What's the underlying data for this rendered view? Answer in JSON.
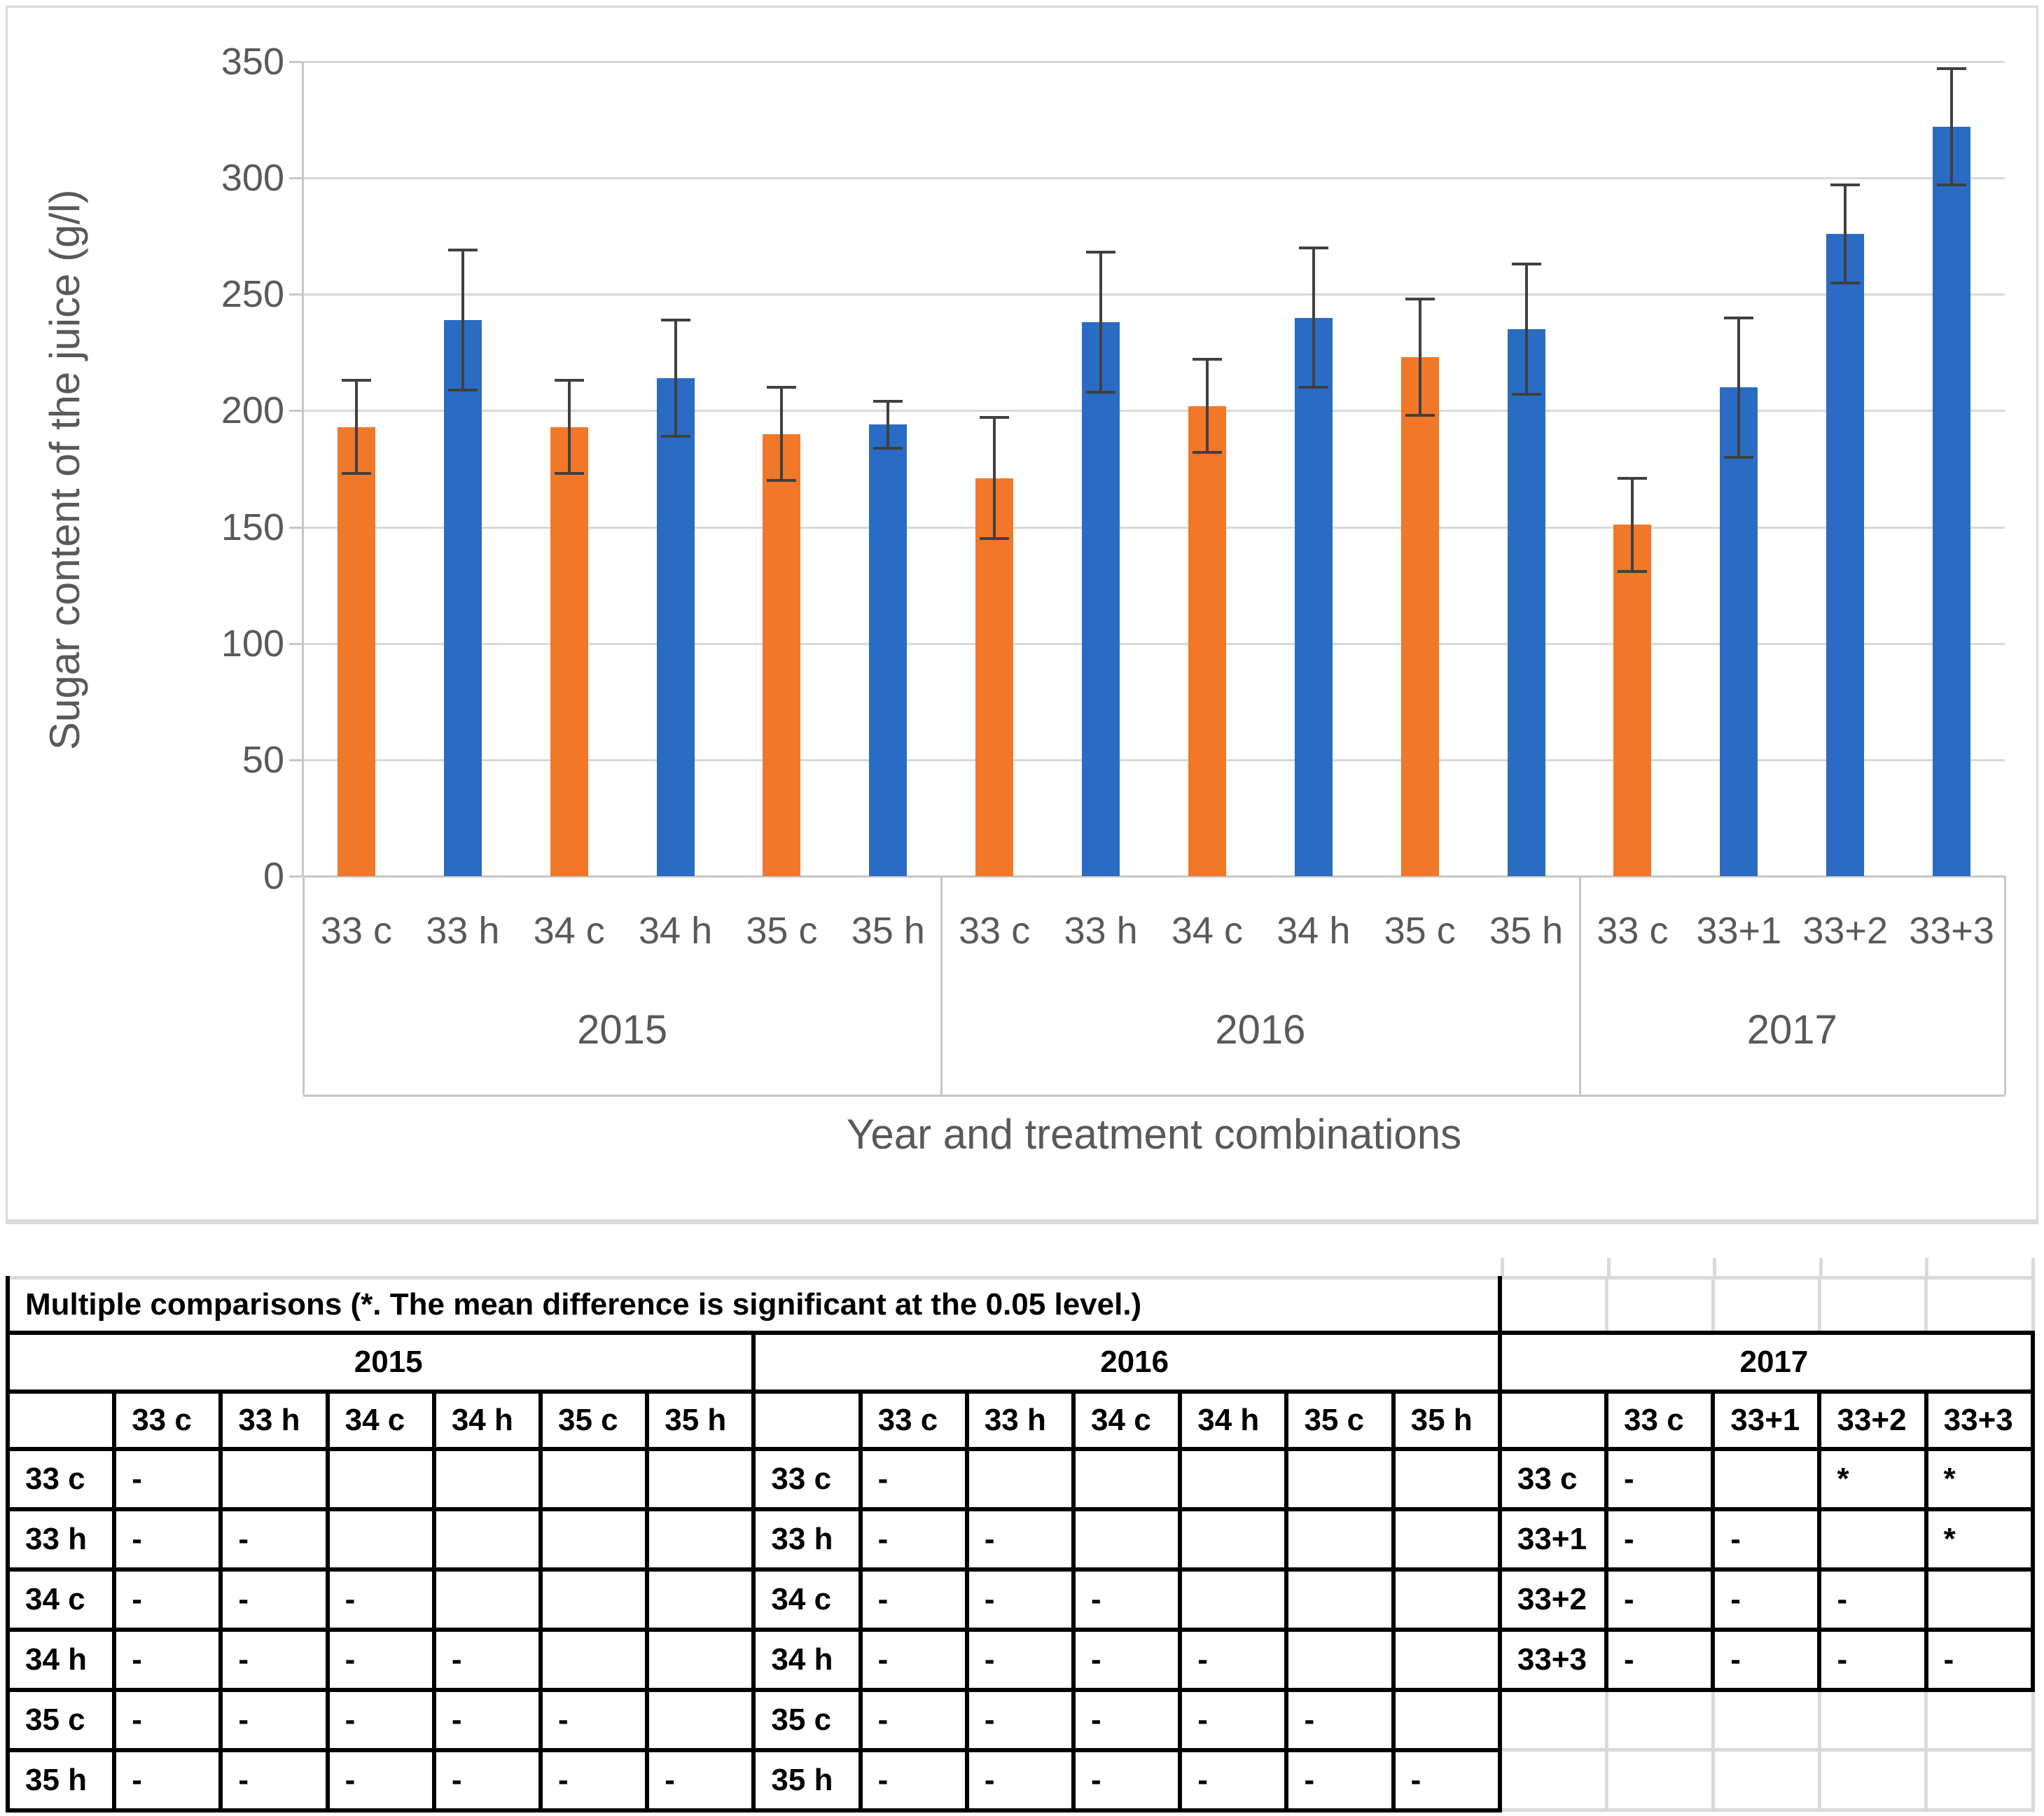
{
  "chart_data": {
    "type": "bar",
    "title": "",
    "xlabel": "Year and treatment combinations",
    "ylabel": "Sugar content of the juice (g/l)",
    "ylim": [
      0,
      350
    ],
    "ytick_step": 50,
    "grid": true,
    "legend": false,
    "groups": [
      {
        "year": "2015",
        "bars": [
          {
            "label": "33 c",
            "value": 193,
            "error": 20,
            "color": "orange"
          },
          {
            "label": "33 h",
            "value": 239,
            "error": 30,
            "color": "blue"
          },
          {
            "label": "34 c",
            "value": 193,
            "error": 20,
            "color": "orange"
          },
          {
            "label": "34 h",
            "value": 214,
            "error": 25,
            "color": "blue"
          },
          {
            "label": "35 c",
            "value": 190,
            "error": 20,
            "color": "orange"
          },
          {
            "label": "35 h",
            "value": 194,
            "error": 10,
            "color": "blue"
          }
        ]
      },
      {
        "year": "2016",
        "bars": [
          {
            "label": "33 c",
            "value": 171,
            "error": 26,
            "color": "orange"
          },
          {
            "label": "33 h",
            "value": 238,
            "error": 30,
            "color": "blue"
          },
          {
            "label": "34 c",
            "value": 202,
            "error": 20,
            "color": "orange"
          },
          {
            "label": "34 h",
            "value": 240,
            "error": 30,
            "color": "blue"
          },
          {
            "label": "35 c",
            "value": 223,
            "error": 25,
            "color": "orange"
          },
          {
            "label": "35 h",
            "value": 235,
            "error": 28,
            "color": "blue"
          }
        ]
      },
      {
        "year": "2017",
        "bars": [
          {
            "label": "33 c",
            "value": 151,
            "error": 20,
            "color": "orange"
          },
          {
            "label": "33+1",
            "value": 210,
            "error": 30,
            "color": "blue"
          },
          {
            "label": "33+2",
            "value": 276,
            "error": 21,
            "color": "blue"
          },
          {
            "label": "33+3",
            "value": 322,
            "error": 25,
            "color": "blue"
          }
        ]
      }
    ],
    "palette": {
      "orange": "#F07828",
      "blue": "#2A6CC4"
    },
    "error_bar_color": "#404040",
    "gridline_color": "#D9D9D9",
    "axis_line_color": "#C6C6C6",
    "text_color": "#595959"
  },
  "comparisons_table": {
    "title": "Multiple comparisons (*. The mean difference is significant at the 0.05 level.)",
    "blocks": [
      {
        "year": "2015",
        "columns": [
          "33 c",
          "33 h",
          "34 c",
          "34 h",
          "35 c",
          "35 h"
        ],
        "rows": [
          {
            "label": "33 c",
            "cells": [
              "-",
              "",
              "",
              "",
              "",
              ""
            ]
          },
          {
            "label": "33 h",
            "cells": [
              "-",
              "-",
              "",
              "",
              "",
              ""
            ]
          },
          {
            "label": "34 c",
            "cells": [
              "-",
              "-",
              "-",
              "",
              "",
              ""
            ]
          },
          {
            "label": "34 h",
            "cells": [
              "-",
              "-",
              "-",
              "-",
              "",
              ""
            ]
          },
          {
            "label": "35 c",
            "cells": [
              "-",
              "-",
              "-",
              "-",
              "-",
              ""
            ]
          },
          {
            "label": "35 h",
            "cells": [
              "-",
              "-",
              "-",
              "-",
              "-",
              "-"
            ]
          }
        ]
      },
      {
        "year": "2016",
        "columns": [
          "33 c",
          "33 h",
          "34 c",
          "34 h",
          "35 c",
          "35 h"
        ],
        "rows": [
          {
            "label": "33 c",
            "cells": [
              "-",
              "",
              "",
              "",
              "",
              ""
            ]
          },
          {
            "label": "33 h",
            "cells": [
              "-",
              "-",
              "",
              "",
              "",
              ""
            ]
          },
          {
            "label": "34 c",
            "cells": [
              "-",
              "-",
              "-",
              "",
              "",
              ""
            ]
          },
          {
            "label": "34 h",
            "cells": [
              "-",
              "-",
              "-",
              "-",
              "",
              ""
            ]
          },
          {
            "label": "35 c",
            "cells": [
              "-",
              "-",
              "-",
              "-",
              "-",
              ""
            ]
          },
          {
            "label": "35 h",
            "cells": [
              "-",
              "-",
              "-",
              "-",
              "-",
              "-"
            ]
          }
        ]
      },
      {
        "year": "2017",
        "columns": [
          "33 c",
          "33+1",
          "33+2",
          "33+3"
        ],
        "rows": [
          {
            "label": "33 c",
            "cells": [
              "-",
              "",
              "*",
              "*"
            ]
          },
          {
            "label": "33+1",
            "cells": [
              "-",
              "-",
              "",
              "*"
            ]
          },
          {
            "label": "33+2",
            "cells": [
              "-",
              "-",
              "-",
              ""
            ]
          },
          {
            "label": "33+3",
            "cells": [
              "-",
              "-",
              "-",
              "-"
            ]
          }
        ],
        "trailing_empty_rows": 2
      }
    ]
  }
}
